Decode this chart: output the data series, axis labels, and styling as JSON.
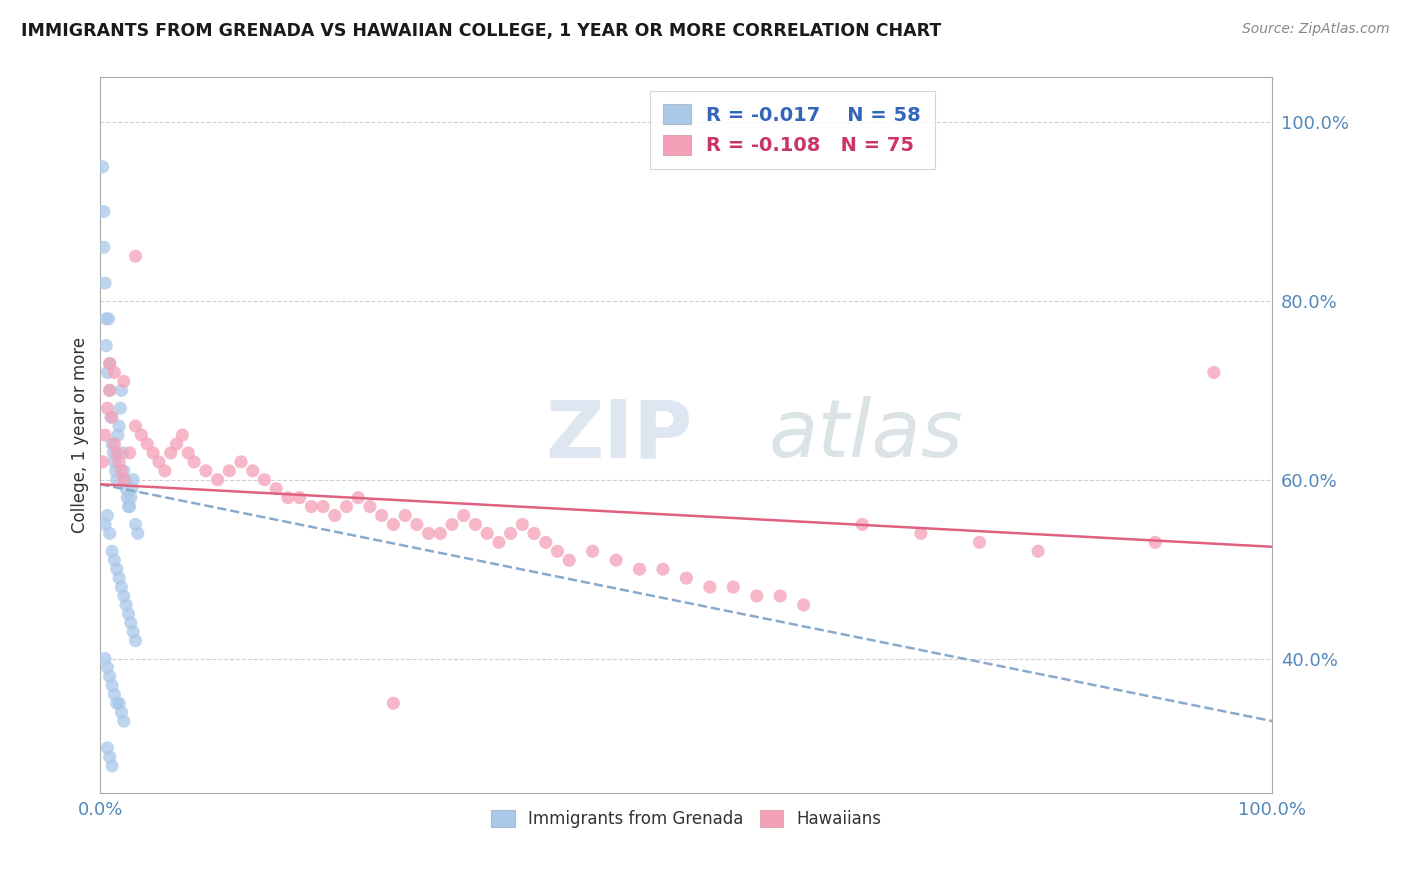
{
  "title": "IMMIGRANTS FROM GRENADA VS HAWAIIAN COLLEGE, 1 YEAR OR MORE CORRELATION CHART",
  "source_text": "Source: ZipAtlas.com",
  "ylabel": "College, 1 year or more",
  "xlim": [
    0.0,
    1.0
  ],
  "ylim": [
    0.25,
    1.05
  ],
  "x_tick_labels": [
    "0.0%",
    "100.0%"
  ],
  "y_tick_labels": [
    "40.0%",
    "60.0%",
    "80.0%",
    "100.0%"
  ],
  "y_tick_positions": [
    0.4,
    0.6,
    0.8,
    1.0
  ],
  "watermark_part1": "ZIP",
  "watermark_part2": "atlas",
  "legend_labels": [
    "Immigrants from Grenada",
    "Hawaiians"
  ],
  "R_grenada": -0.017,
  "N_grenada": 58,
  "R_hawaiian": -0.108,
  "N_hawaiian": 75,
  "color_grenada": "#aac8e8",
  "color_hawaiian": "#f4a0b8",
  "line_color_grenada": "#88aacc",
  "line_color_hawaiian": "#e06080",
  "background_color": "#ffffff",
  "grid_color": "#cccccc",
  "grenada_line_start_y": 0.595,
  "grenada_line_end_y": 0.33,
  "hawaiian_line_start_y": 0.595,
  "hawaiian_line_end_y": 0.525,
  "grenada_x": [
    0.002,
    0.003,
    0.003,
    0.004,
    0.005,
    0.005,
    0.006,
    0.007,
    0.008,
    0.008,
    0.009,
    0.01,
    0.011,
    0.012,
    0.013,
    0.014,
    0.015,
    0.016,
    0.017,
    0.018,
    0.019,
    0.02,
    0.021,
    0.022,
    0.023,
    0.024,
    0.025,
    0.026,
    0.027,
    0.028,
    0.03,
    0.032,
    0.004,
    0.006,
    0.008,
    0.01,
    0.012,
    0.014,
    0.016,
    0.018,
    0.02,
    0.022,
    0.024,
    0.026,
    0.028,
    0.03,
    0.004,
    0.006,
    0.008,
    0.01,
    0.012,
    0.014,
    0.016,
    0.018,
    0.02,
    0.006,
    0.008,
    0.01
  ],
  "grenada_y": [
    0.95,
    0.9,
    0.86,
    0.82,
    0.78,
    0.75,
    0.72,
    0.78,
    0.73,
    0.7,
    0.67,
    0.64,
    0.63,
    0.62,
    0.61,
    0.6,
    0.65,
    0.66,
    0.68,
    0.7,
    0.63,
    0.61,
    0.6,
    0.59,
    0.58,
    0.57,
    0.57,
    0.58,
    0.59,
    0.6,
    0.55,
    0.54,
    0.55,
    0.56,
    0.54,
    0.52,
    0.51,
    0.5,
    0.49,
    0.48,
    0.47,
    0.46,
    0.45,
    0.44,
    0.43,
    0.42,
    0.4,
    0.39,
    0.38,
    0.37,
    0.36,
    0.35,
    0.35,
    0.34,
    0.33,
    0.3,
    0.29,
    0.28
  ],
  "hawaiian_x": [
    0.002,
    0.004,
    0.006,
    0.008,
    0.01,
    0.012,
    0.014,
    0.016,
    0.018,
    0.02,
    0.025,
    0.03,
    0.035,
    0.04,
    0.045,
    0.05,
    0.055,
    0.06,
    0.065,
    0.07,
    0.075,
    0.08,
    0.09,
    0.1,
    0.11,
    0.12,
    0.13,
    0.14,
    0.15,
    0.16,
    0.17,
    0.18,
    0.19,
    0.2,
    0.21,
    0.22,
    0.23,
    0.24,
    0.25,
    0.26,
    0.27,
    0.28,
    0.29,
    0.3,
    0.31,
    0.32,
    0.33,
    0.34,
    0.35,
    0.36,
    0.37,
    0.38,
    0.39,
    0.4,
    0.42,
    0.44,
    0.46,
    0.48,
    0.5,
    0.52,
    0.54,
    0.56,
    0.58,
    0.6,
    0.65,
    0.7,
    0.75,
    0.8,
    0.9,
    0.95,
    0.008,
    0.012,
    0.02,
    0.03,
    0.25
  ],
  "hawaiian_y": [
    0.62,
    0.65,
    0.68,
    0.7,
    0.67,
    0.64,
    0.63,
    0.62,
    0.61,
    0.6,
    0.63,
    0.66,
    0.65,
    0.64,
    0.63,
    0.62,
    0.61,
    0.63,
    0.64,
    0.65,
    0.63,
    0.62,
    0.61,
    0.6,
    0.61,
    0.62,
    0.61,
    0.6,
    0.59,
    0.58,
    0.58,
    0.57,
    0.57,
    0.56,
    0.57,
    0.58,
    0.57,
    0.56,
    0.55,
    0.56,
    0.55,
    0.54,
    0.54,
    0.55,
    0.56,
    0.55,
    0.54,
    0.53,
    0.54,
    0.55,
    0.54,
    0.53,
    0.52,
    0.51,
    0.52,
    0.51,
    0.5,
    0.5,
    0.49,
    0.48,
    0.48,
    0.47,
    0.47,
    0.46,
    0.55,
    0.54,
    0.53,
    0.52,
    0.53,
    0.72,
    0.73,
    0.72,
    0.71,
    0.85,
    0.35
  ]
}
